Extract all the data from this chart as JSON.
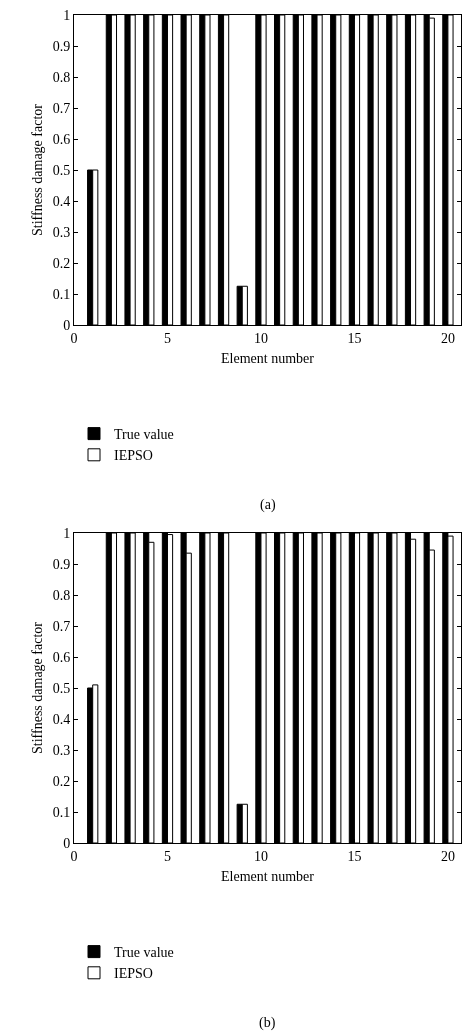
{
  "chart_data": [
    {
      "type": "bar",
      "xlabel": "Element number",
      "ylabel": "Stiffness damage factor",
      "annotations": [
        "(a)"
      ],
      "x": [
        1,
        2,
        3,
        4,
        5,
        6,
        7,
        8,
        9,
        10,
        11,
        12,
        13,
        14,
        15,
        16,
        17,
        18,
        19,
        20
      ],
      "series": [
        {
          "name": "True value",
          "color": "#000000",
          "values": [
            0.5,
            1,
            1,
            1,
            1,
            1,
            1,
            1,
            0.125,
            1,
            1,
            1,
            1,
            1,
            1,
            1,
            1,
            1,
            1,
            1
          ]
        },
        {
          "name": "IEPSO",
          "color": "#ffffff",
          "values": [
            0.5,
            1,
            1,
            1,
            1,
            1,
            1,
            1,
            0.125,
            1,
            1,
            1,
            1,
            1,
            1,
            1,
            1,
            1,
            0.99,
            1
          ]
        }
      ],
      "xlim": [
        0,
        20.7
      ],
      "xticks": [
        0,
        5,
        10,
        15,
        20
      ],
      "ylim": [
        0,
        1
      ],
      "yticks": [
        0,
        0.1,
        0.2,
        0.3,
        0.4,
        0.5,
        0.6,
        0.7,
        0.8,
        0.9,
        1
      ],
      "grid": false,
      "legend": "bottom left"
    },
    {
      "type": "bar",
      "xlabel": "Element number",
      "ylabel": "Stiffness damage factor",
      "annotations": [
        "(b)"
      ],
      "x": [
        1,
        2,
        3,
        4,
        5,
        6,
        7,
        8,
        9,
        10,
        11,
        12,
        13,
        14,
        15,
        16,
        17,
        18,
        19,
        20
      ],
      "series": [
        {
          "name": "True value",
          "color": "#000000",
          "values": [
            0.5,
            1,
            1,
            1,
            1,
            1,
            1,
            1,
            0.125,
            1,
            1,
            1,
            1,
            1,
            1,
            1,
            1,
            1,
            1,
            1
          ]
        },
        {
          "name": "IEPSO",
          "color": "#ffffff",
          "values": [
            0.51,
            1,
            1,
            0.97,
            0.995,
            0.935,
            1,
            1,
            0.125,
            1,
            1,
            1,
            1,
            1,
            1,
            1,
            1,
            0.98,
            0.945,
            0.99
          ]
        }
      ],
      "xlim": [
        0,
        20.7
      ],
      "xticks": [
        0,
        5,
        10,
        15,
        20
      ],
      "ylim": [
        0,
        1
      ],
      "yticks": [
        0,
        0.1,
        0.2,
        0.3,
        0.4,
        0.5,
        0.6,
        0.7,
        0.8,
        0.9,
        1
      ],
      "grid": false,
      "legend": "bottom left"
    }
  ]
}
